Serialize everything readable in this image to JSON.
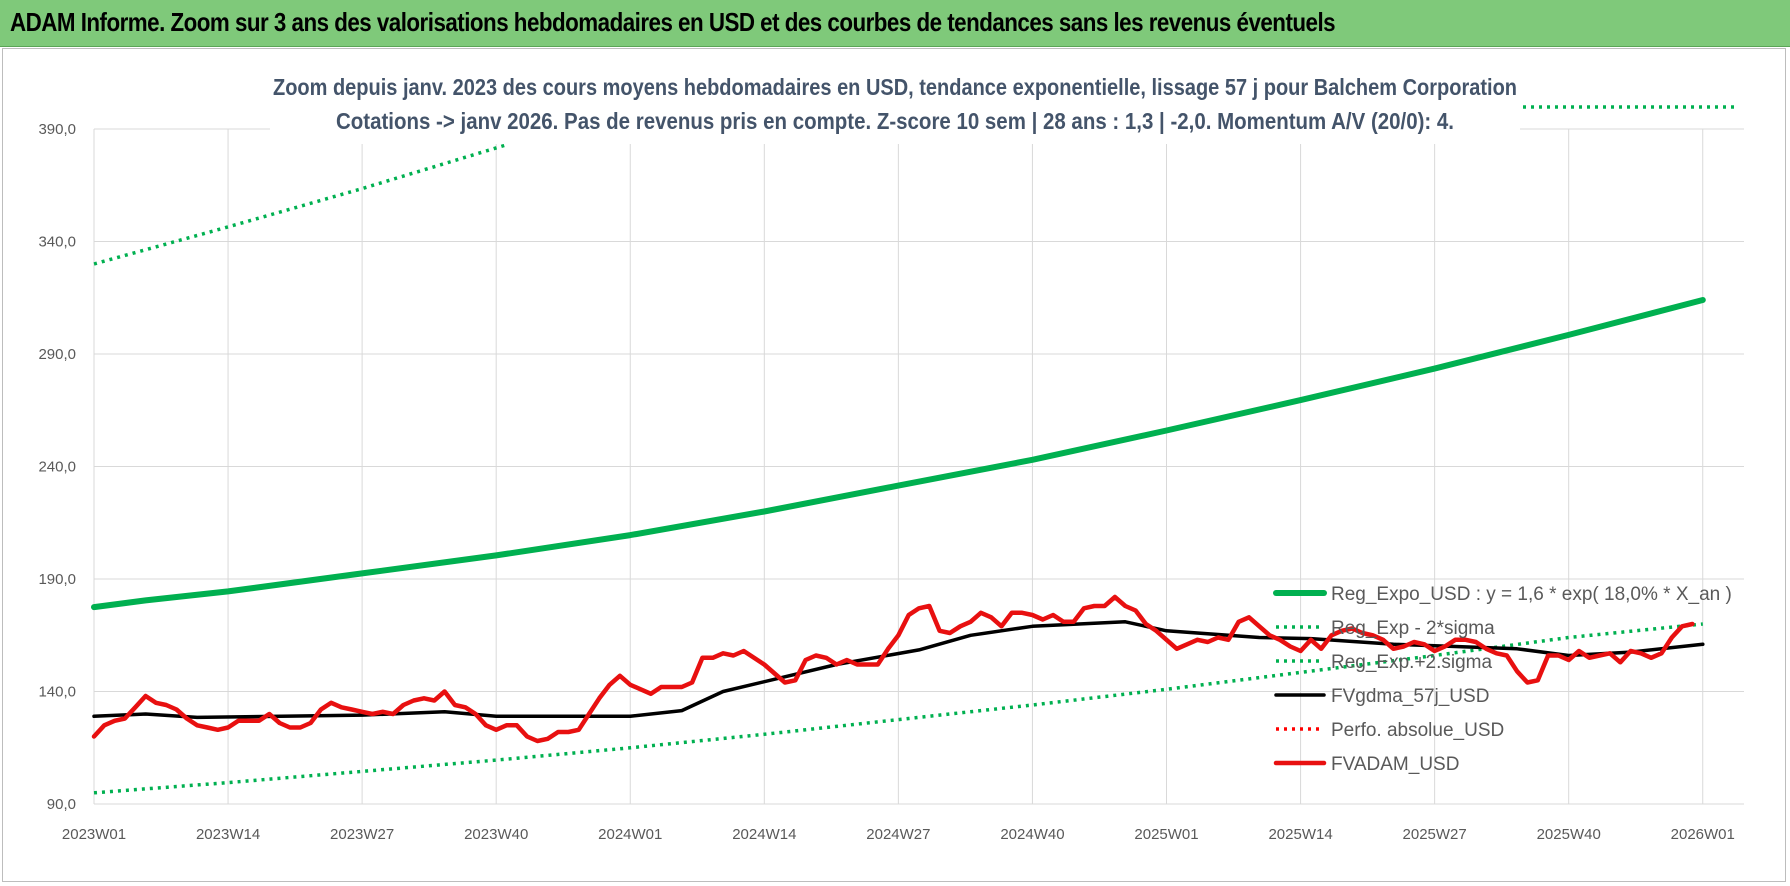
{
  "banner": {
    "title": "ADAM Informe. Zoom sur 3 ans des valorisations hebdomadaires en USD et des courbes de tendances sans les revenus éventuels"
  },
  "chart_data": {
    "type": "line",
    "title_line1": "Zoom depuis janv. 2023 des cours moyens hebdomadaires en USD, tendance exponentielle, lissage 57 j pour Balchem Corporation",
    "title_line2": "Cotations -> janv 2026. Pas de revenus pris en compte. Z-score 10 sem | 28 ans : 1,3 | -2,0. Momentum A/V (20/0): 4.",
    "x_tick_labels": [
      "2023W01",
      "2023W14",
      "2023W27",
      "2023W40",
      "2024W01",
      "2024W14",
      "2024W27",
      "2024W40",
      "2025W01",
      "2025W14",
      "2025W27",
      "2025W40",
      "2026W01"
    ],
    "y_tick_labels": [
      "90,0",
      "140,0",
      "190,0",
      "240,0",
      "290,0",
      "340,0",
      "390,0"
    ],
    "ylim": [
      90,
      400
    ],
    "x_index_range": [
      0,
      160
    ],
    "legend_position": "right",
    "series": [
      {
        "name": "Reg_Expo_USD : y = 1,6 * exp( 18,0% *  X_an )",
        "color": "#00b050",
        "style": "solid-thick",
        "points": [
          [
            0,
            177.5
          ],
          [
            5,
            180.5
          ],
          [
            13,
            184.5
          ],
          [
            26,
            192.5
          ],
          [
            39,
            200.5
          ],
          [
            52,
            209.5
          ],
          [
            65,
            220
          ],
          [
            78,
            231.5
          ],
          [
            91,
            243
          ],
          [
            104,
            256
          ],
          [
            117,
            269.5
          ],
          [
            130,
            283.5
          ],
          [
            143,
            298.5
          ],
          [
            156,
            314
          ]
        ]
      },
      {
        "name": "Reg_Exp - 2*sigma",
        "color": "#00b050",
        "style": "dotted",
        "points": [
          [
            0,
            95
          ],
          [
            13,
            99.5
          ],
          [
            26,
            104.5
          ],
          [
            39,
            109.5
          ],
          [
            52,
            115
          ],
          [
            65,
            121
          ],
          [
            78,
            127.5
          ],
          [
            91,
            134
          ],
          [
            104,
            141
          ],
          [
            117,
            148.5
          ],
          [
            130,
            156
          ],
          [
            143,
            164
          ],
          [
            156,
            170
          ]
        ]
      },
      {
        "name": "Reg_Exp.+2.sigma",
        "color": "#00b050",
        "style": "dotted",
        "points": [
          [
            0,
            330
          ],
          [
            13,
            346.5
          ],
          [
            26,
            363.5
          ],
          [
            40,
            383
          ]
        ]
      },
      {
        "name": "FVgdma_57j_USD",
        "color": "#000000",
        "style": "solid",
        "points": [
          [
            0,
            129
          ],
          [
            5,
            130
          ],
          [
            10,
            128.5
          ],
          [
            26,
            129.5
          ],
          [
            34,
            131
          ],
          [
            39,
            129
          ],
          [
            52,
            129
          ],
          [
            57,
            131.5
          ],
          [
            61,
            140
          ],
          [
            72,
            152
          ],
          [
            80,
            158.5
          ],
          [
            85,
            165
          ],
          [
            91,
            169
          ],
          [
            100,
            171
          ],
          [
            104,
            167
          ],
          [
            113,
            164
          ],
          [
            118,
            163.5
          ],
          [
            126,
            161
          ],
          [
            138,
            159
          ],
          [
            143,
            156
          ],
          [
            149,
            157.5
          ],
          [
            156,
            161
          ]
        ]
      },
      {
        "name": "Perfo. absolue_USD",
        "color": "#ff0000",
        "style": "dotted",
        "points": []
      },
      {
        "name": "FVADAM_USD",
        "color": "#e81010",
        "style": "solid",
        "points": [
          [
            0,
            120
          ],
          [
            1,
            125
          ],
          [
            2,
            127
          ],
          [
            3,
            128
          ],
          [
            4,
            133
          ],
          [
            5,
            138
          ],
          [
            6,
            135
          ],
          [
            7,
            134
          ],
          [
            8,
            132
          ],
          [
            9,
            128
          ],
          [
            10,
            125
          ],
          [
            11,
            124
          ],
          [
            12,
            123
          ],
          [
            13,
            124
          ],
          [
            14,
            127
          ],
          [
            15,
            127
          ],
          [
            16,
            127
          ],
          [
            17,
            130
          ],
          [
            18,
            126
          ],
          [
            19,
            124
          ],
          [
            20,
            124
          ],
          [
            21,
            126
          ],
          [
            22,
            132
          ],
          [
            23,
            135
          ],
          [
            24,
            133
          ],
          [
            25,
            132
          ],
          [
            26,
            131
          ],
          [
            27,
            130
          ],
          [
            28,
            131
          ],
          [
            29,
            130
          ],
          [
            30,
            134
          ],
          [
            31,
            136
          ],
          [
            32,
            137
          ],
          [
            33,
            136
          ],
          [
            34,
            140
          ],
          [
            35,
            134
          ],
          [
            36,
            133
          ],
          [
            37,
            130
          ],
          [
            38,
            125
          ],
          [
            39,
            123
          ],
          [
            40,
            125
          ],
          [
            41,
            125
          ],
          [
            42,
            120
          ],
          [
            43,
            118
          ],
          [
            44,
            119
          ],
          [
            45,
            122
          ],
          [
            46,
            122
          ],
          [
            47,
            123
          ],
          [
            48,
            130
          ],
          [
            49,
            137
          ],
          [
            50,
            143
          ],
          [
            51,
            147
          ],
          [
            52,
            143
          ],
          [
            53,
            141
          ],
          [
            54,
            139
          ],
          [
            55,
            142
          ],
          [
            56,
            142
          ],
          [
            57,
            142
          ],
          [
            58,
            144
          ],
          [
            59,
            155
          ],
          [
            60,
            155
          ],
          [
            61,
            157
          ],
          [
            62,
            156
          ],
          [
            63,
            158
          ],
          [
            64,
            155
          ],
          [
            65,
            152
          ],
          [
            66,
            148
          ],
          [
            67,
            144
          ],
          [
            68,
            145
          ],
          [
            69,
            154
          ],
          [
            70,
            156
          ],
          [
            71,
            155
          ],
          [
            72,
            152
          ],
          [
            73,
            154
          ],
          [
            74,
            152
          ],
          [
            75,
            152
          ],
          [
            76,
            152
          ],
          [
            77,
            159
          ],
          [
            78,
            165
          ],
          [
            79,
            174
          ],
          [
            80,
            177
          ],
          [
            81,
            178
          ],
          [
            82,
            167
          ],
          [
            83,
            166
          ],
          [
            84,
            169
          ],
          [
            85,
            171
          ],
          [
            86,
            175
          ],
          [
            87,
            173
          ],
          [
            88,
            169
          ],
          [
            89,
            175
          ],
          [
            90,
            175
          ],
          [
            91,
            174
          ],
          [
            92,
            172
          ],
          [
            93,
            174
          ],
          [
            94,
            171
          ],
          [
            95,
            171
          ],
          [
            96,
            177
          ],
          [
            97,
            178
          ],
          [
            98,
            178
          ],
          [
            99,
            182
          ],
          [
            100,
            178
          ],
          [
            101,
            176
          ],
          [
            102,
            170
          ],
          [
            103,
            167
          ],
          [
            104,
            163
          ],
          [
            105,
            159
          ],
          [
            106,
            161
          ],
          [
            107,
            163
          ],
          [
            108,
            162
          ],
          [
            109,
            164
          ],
          [
            110,
            163
          ],
          [
            111,
            171
          ],
          [
            112,
            173
          ],
          [
            113,
            169
          ],
          [
            114,
            165
          ],
          [
            115,
            163
          ],
          [
            116,
            160
          ],
          [
            117,
            158
          ],
          [
            118,
            163
          ],
          [
            119,
            159
          ],
          [
            120,
            165
          ],
          [
            121,
            167
          ],
          [
            122,
            168
          ],
          [
            123,
            166
          ],
          [
            124,
            165
          ],
          [
            125,
            163
          ],
          [
            126,
            159
          ],
          [
            127,
            160
          ],
          [
            128,
            162
          ],
          [
            129,
            161
          ],
          [
            130,
            158
          ],
          [
            131,
            160
          ],
          [
            132,
            163
          ],
          [
            133,
            163
          ],
          [
            134,
            162
          ],
          [
            135,
            159
          ],
          [
            136,
            157
          ],
          [
            137,
            156
          ],
          [
            138,
            149
          ],
          [
            139,
            144
          ],
          [
            140,
            145
          ],
          [
            141,
            156
          ],
          [
            142,
            156
          ],
          [
            143,
            154
          ],
          [
            144,
            158
          ],
          [
            145,
            155
          ],
          [
            146,
            156
          ],
          [
            147,
            157
          ],
          [
            148,
            153
          ],
          [
            149,
            158
          ],
          [
            150,
            157
          ],
          [
            151,
            155
          ],
          [
            152,
            157
          ],
          [
            153,
            164
          ],
          [
            154,
            169
          ],
          [
            155,
            170
          ]
        ]
      }
    ]
  }
}
